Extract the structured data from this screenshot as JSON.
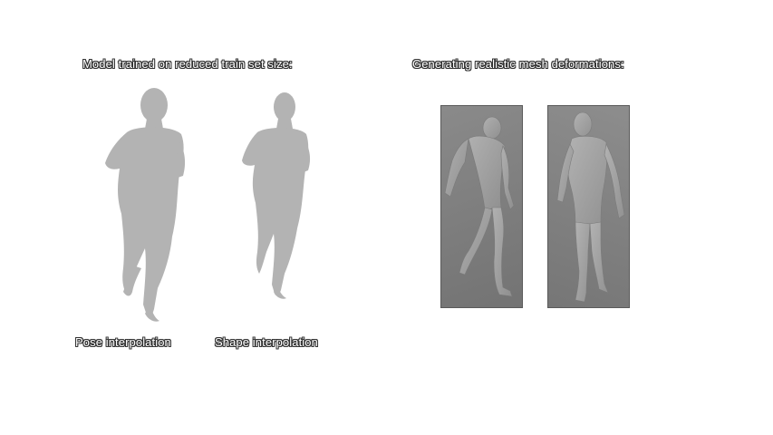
{
  "captions": {
    "left_title": "Model trained on reduced train set size:",
    "right_title": "Generating realistic mesh deformations:",
    "pose_label": "Pose interpolation",
    "shape_label": "Shape interpolation"
  },
  "colors": {
    "silhouette": "#b3b3b3",
    "mesh_body": "#a8a8a8",
    "mesh_shadow": "#8f8f8f"
  }
}
